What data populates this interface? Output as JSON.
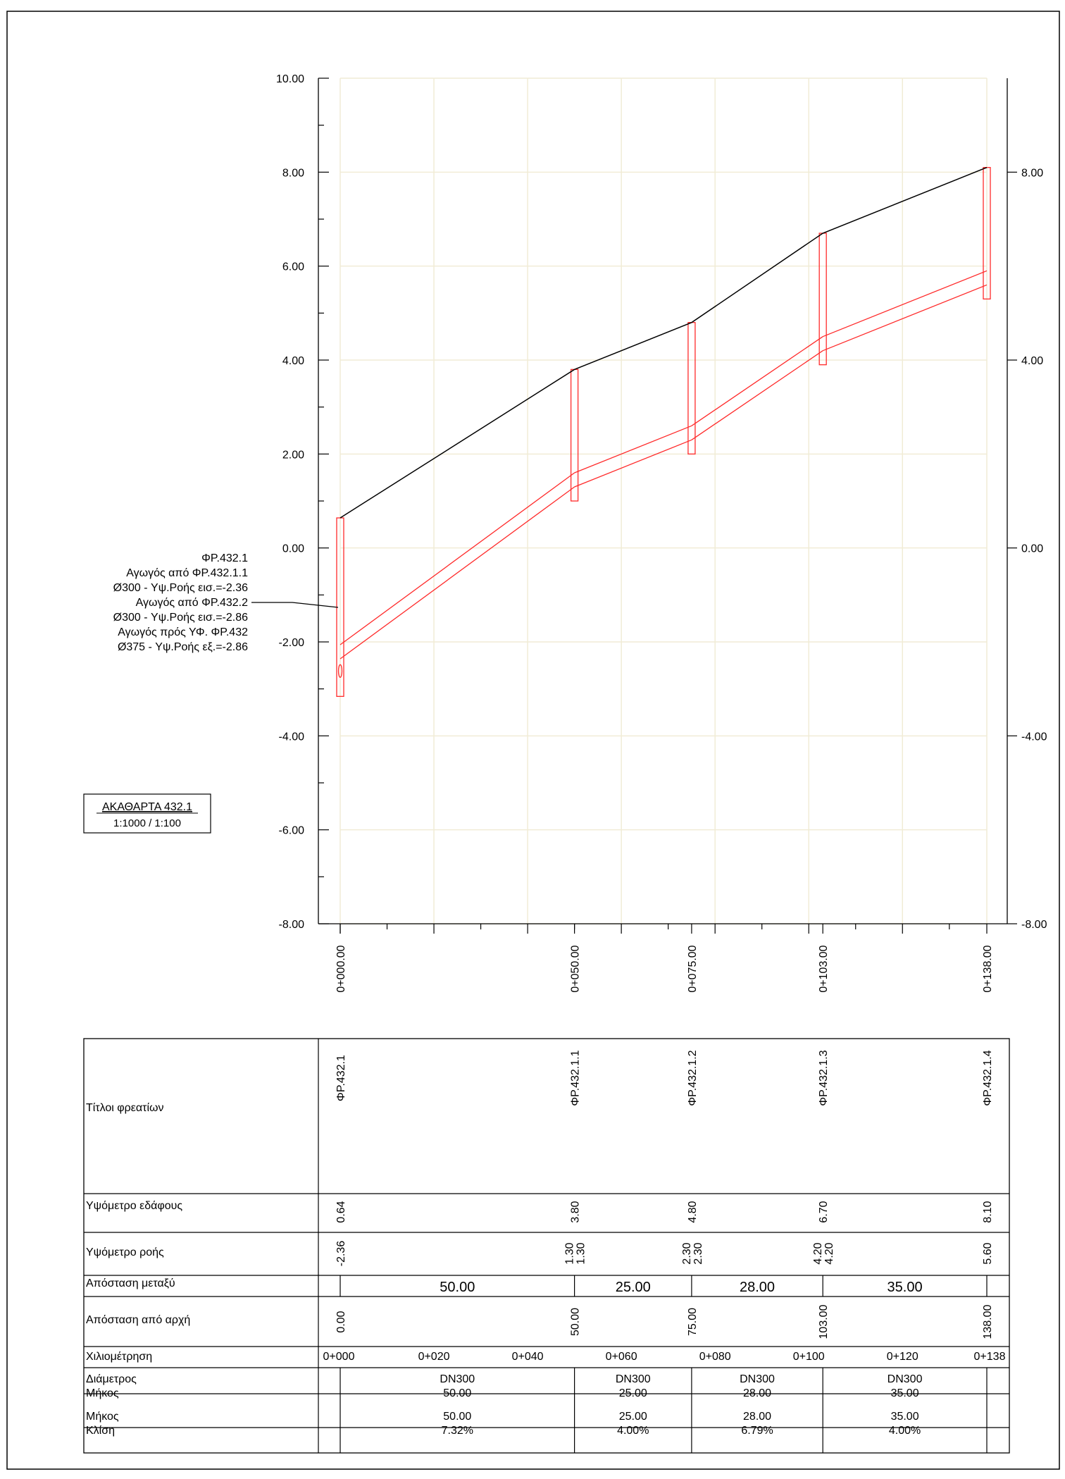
{
  "drawing": {
    "title": "ΑΚΑΘΑΡΤΑ 432.1",
    "scale": "1:1000 / 1:100"
  },
  "colors": {
    "grid": "#f1ecd6",
    "ground_line": "#000000",
    "pipe": "#ff2a2a",
    "frame": "#000000"
  },
  "annotation": {
    "lines": [
      "ΦΡ.432.1",
      "Αγωγός από ΦΡ.432.1.1",
      "Ø300 - Υψ.Ροής εισ.=-2.36",
      "Αγωγός από ΦΡ.432.2",
      "Ø300 - Υψ.Ροής εισ.=-2.86",
      "Αγωγός πρός ΥΦ. ΦΡ.432",
      "Ø375 - Υψ.Ροής εξ.=-2.86"
    ]
  },
  "chart_data": {
    "type": "line",
    "x_unit": "m (chainage)",
    "y_unit": "m (elevation)",
    "xlim": [
      0,
      138
    ],
    "ylim": [
      -8,
      10
    ],
    "grid": true,
    "left_tick_labels": [
      "10.00",
      "8.00",
      "6.00",
      "4.00",
      "2.00",
      "0.00",
      "-2.00",
      "-4.00",
      "-6.00",
      "-8.00"
    ],
    "left_tick_values": [
      10,
      8,
      6,
      4,
      2,
      0,
      -2,
      -4,
      -6,
      -8
    ],
    "right_tick_labels": [
      "8.00",
      "4.00",
      "0.00",
      "-4.00",
      "-8.00"
    ],
    "right_tick_values": [
      8,
      4,
      0,
      -4,
      -8
    ],
    "station_labels": [
      "0+000.00",
      "0+050.00",
      "0+075.00",
      "0+103.00",
      "0+138.00"
    ],
    "series": [
      {
        "kind": "ground",
        "x": [
          0,
          50,
          75,
          103,
          138
        ],
        "y": [
          0.64,
          3.8,
          4.8,
          6.7,
          8.1
        ]
      },
      {
        "kind": "pipe-invert",
        "segments": [
          {
            "x": [
              0,
              50
            ],
            "y": [
              -2.36,
              1.3
            ]
          },
          {
            "x": [
              50,
              75
            ],
            "y": [
              1.3,
              2.3
            ]
          },
          {
            "x": [
              75,
              103
            ],
            "y": [
              2.3,
              4.2
            ]
          },
          {
            "x": [
              103,
              138
            ],
            "y": [
              4.2,
              5.6
            ]
          }
        ]
      }
    ],
    "manholes": [
      {
        "x": 0,
        "top": 0.64,
        "bottom": -3.16
      },
      {
        "x": 50,
        "top": 3.8,
        "bottom": 1.0
      },
      {
        "x": 75,
        "top": 4.8,
        "bottom": 2.0
      },
      {
        "x": 103,
        "top": 6.7,
        "bottom": 3.9
      },
      {
        "x": 138,
        "top": 8.1,
        "bottom": 5.3
      }
    ]
  },
  "table": {
    "row_labels": {
      "titles": "Τίτλοι φρεατίων",
      "ground": "Υψόμετρο εδάφους",
      "flow": "Υψόμετρο ροής",
      "dist_between": "Απόσταση μεταξύ",
      "dist_start": "Απόσταση από αρχή",
      "chainage": "Χιλιομέτρηση",
      "diam_len": [
        "Διάμετρος",
        "Μήκος"
      ],
      "len_slope": [
        "Μήκος",
        "Κλίση"
      ]
    },
    "stations": [
      {
        "x": 0,
        "title": "ΦΡ.432.1",
        "ground": "0.64",
        "flow": [
          "-2.36"
        ],
        "dist_start": "0.00"
      },
      {
        "x": 50,
        "title": "ΦΡ.432.1.1",
        "ground": "3.80",
        "flow": [
          "1.30",
          "1.30"
        ],
        "dist_start": "50.00"
      },
      {
        "x": 75,
        "title": "ΦΡ.432.1.2",
        "ground": "4.80",
        "flow": [
          "2.30",
          "2.30"
        ],
        "dist_start": "75.00"
      },
      {
        "x": 103,
        "title": "ΦΡ.432.1.3",
        "ground": "6.70",
        "flow": [
          "4.20",
          "4.20"
        ],
        "dist_start": "103.00"
      },
      {
        "x": 138,
        "title": "ΦΡ.432.1.4",
        "ground": "8.10",
        "flow": [
          "5.60"
        ],
        "dist_start": "138.00"
      }
    ],
    "segments": [
      {
        "x0": 0,
        "x1": 50,
        "distance": "50.00",
        "diameter": "DN300",
        "length": "50.00",
        "slope": "7.32%"
      },
      {
        "x0": 50,
        "x1": 75,
        "distance": "25.00",
        "diameter": "DN300",
        "length": "25.00",
        "slope": "4.00%"
      },
      {
        "x0": 75,
        "x1": 103,
        "distance": "28.00",
        "diameter": "DN300",
        "length": "28.00",
        "slope": "6.79%"
      },
      {
        "x0": 103,
        "x1": 138,
        "distance": "35.00",
        "diameter": "DN300",
        "length": "35.00",
        "slope": "4.00%"
      }
    ],
    "chainage": [
      {
        "x": 0,
        "label": "0+000"
      },
      {
        "x": 20,
        "label": "0+020"
      },
      {
        "x": 40,
        "label": "0+040"
      },
      {
        "x": 60,
        "label": "0+060"
      },
      {
        "x": 80,
        "label": "0+080"
      },
      {
        "x": 100,
        "label": "0+100"
      },
      {
        "x": 120,
        "label": "0+120"
      },
      {
        "x": 138,
        "label": "0+138"
      }
    ]
  }
}
